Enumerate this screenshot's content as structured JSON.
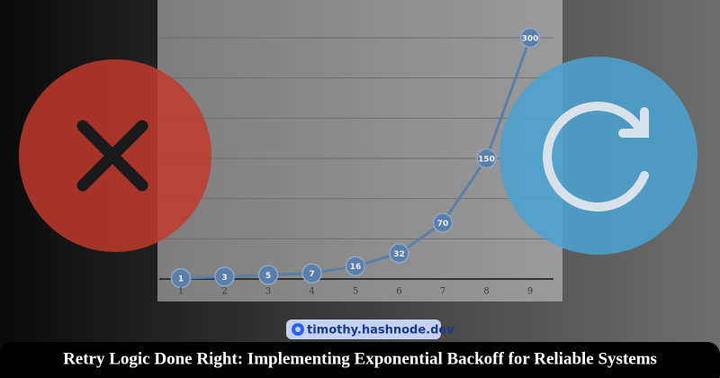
{
  "chart_data": {
    "type": "line",
    "categories": [
      "1",
      "2",
      "3",
      "4",
      "5",
      "6",
      "7",
      "8",
      "9"
    ],
    "values": [
      1,
      3,
      5,
      7,
      16,
      32,
      70,
      150,
      300
    ],
    "color": "#5a7fa8",
    "ylim": [
      0,
      300
    ],
    "yticks": [
      0,
      50,
      100,
      150,
      200,
      250,
      300
    ],
    "grid": true
  },
  "badge": {
    "text": "timothy.hashnode.dev"
  },
  "banner": {
    "title": "Retry Logic Done Right: Implementing Exponential Backoff for Reliable Systems"
  }
}
